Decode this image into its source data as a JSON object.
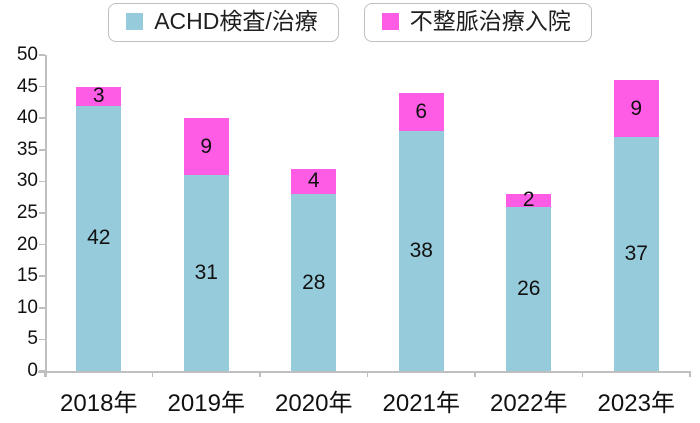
{
  "chart_data": {
    "type": "bar",
    "stacked": true,
    "title": "",
    "xlabel": "",
    "ylabel": "",
    "categories": [
      "2018年",
      "2019年",
      "2020年",
      "2021年",
      "2022年",
      "2023年"
    ],
    "series": [
      {
        "name": "ACHD検査/治療",
        "color": "#96CBDB",
        "values": [
          42,
          31,
          28,
          38,
          26,
          37
        ]
      },
      {
        "name": "不整脈治療入院",
        "color": "#FF5CE6",
        "values": [
          3,
          9,
          4,
          6,
          2,
          9
        ]
      }
    ],
    "totals": [
      45,
      40,
      32,
      44,
      28,
      46
    ],
    "ylim": [
      0,
      50
    ],
    "ytick_step": 5,
    "ytick_labels": [
      "0",
      "5",
      "10",
      "15",
      "20",
      "25",
      "30",
      "35",
      "40",
      "45",
      "50"
    ],
    "legend_position": "top",
    "grid": false,
    "data_labels": "inside-center",
    "axis_color": "#BFBFBF",
    "label_color": "#111111",
    "legend_border_color": "#BFBFBF"
  }
}
